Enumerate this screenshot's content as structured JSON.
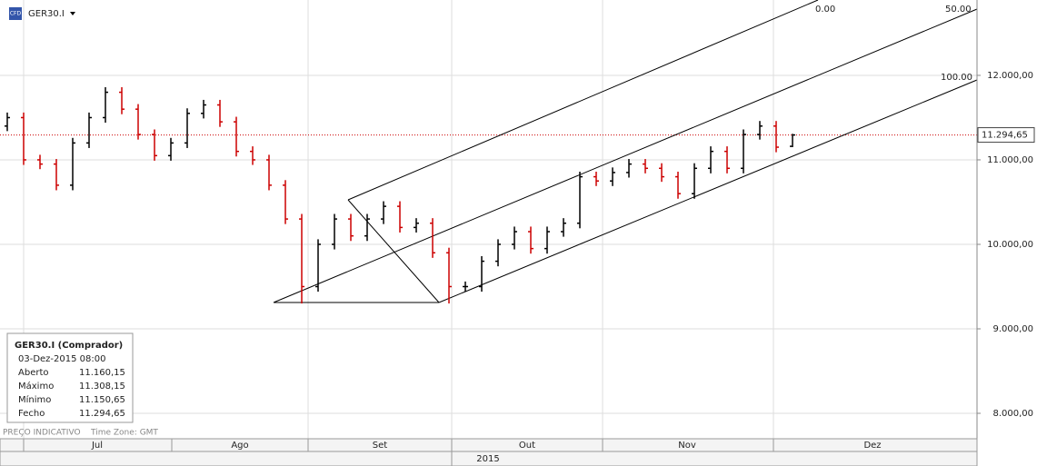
{
  "header": {
    "symbol": "GER30.I",
    "icon": "CFD"
  },
  "chart_data": {
    "type": "ohlc",
    "up_color": "#000000",
    "down_color": "#cc0000",
    "open": [
      11400,
      11500,
      11000,
      10950,
      10700,
      11200,
      11500,
      11800,
      11600,
      11300,
      11050,
      11200,
      11550,
      11650,
      11450,
      11100,
      11000,
      10700,
      10300,
      9500,
      10000,
      10300,
      10100,
      10300,
      10450,
      10200,
      10250,
      9900,
      9500,
      9500,
      9800,
      10000,
      10150,
      9950,
      10150,
      10250,
      10800,
      10750,
      10850,
      10950,
      10900,
      10800,
      10600,
      10900,
      11100,
      10900,
      11300,
      11400,
      11160.15
    ],
    "high": [
      11560,
      11560,
      11060,
      11010,
      11260,
      11560,
      11860,
      11860,
      11660,
      11360,
      11260,
      11610,
      11710,
      11710,
      11510,
      11160,
      11060,
      10760,
      10360,
      10060,
      10360,
      10360,
      10360,
      10510,
      10510,
      10310,
      10310,
      9960,
      9560,
      9860,
      10060,
      10210,
      10210,
      10210,
      10310,
      10860,
      10860,
      10910,
      11010,
      11010,
      10960,
      10860,
      10960,
      11160,
      11160,
      11360,
      11460,
      11460,
      11308.15
    ],
    "low": [
      11340,
      10940,
      10890,
      10640,
      10640,
      11140,
      11440,
      11540,
      11240,
      10990,
      10990,
      11140,
      11490,
      11390,
      11040,
      10940,
      10640,
      10240,
      9300,
      9440,
      9940,
      10040,
      10040,
      10240,
      10140,
      10140,
      9840,
      9300,
      9440,
      9440,
      9740,
      9940,
      9890,
      9890,
      10090,
      10190,
      10690,
      10690,
      10790,
      10840,
      10740,
      10540,
      10540,
      10840,
      10840,
      10840,
      11240,
      11090,
      11150.65
    ],
    "close": [
      11500,
      11000,
      10950,
      10700,
      11200,
      11500,
      11800,
      11600,
      11300,
      11050,
      11200,
      11550,
      11650,
      11450,
      11100,
      11000,
      10700,
      10300,
      9500,
      10000,
      10300,
      10100,
      10300,
      10450,
      10200,
      10250,
      9900,
      9500,
      9500,
      9800,
      10000,
      10150,
      9950,
      10150,
      10250,
      10800,
      10750,
      10850,
      10950,
      10900,
      10800,
      10600,
      10900,
      11100,
      10900,
      11300,
      11400,
      11150,
      11294.65
    ],
    "last_price": {
      "value": 11294.65,
      "label": "11.294,65"
    },
    "ylim": [
      7699,
      12892
    ],
    "yticks": [
      {
        "value": 12000,
        "label": "12.000,00"
      },
      {
        "value": 11000,
        "label": "11.000,00"
      },
      {
        "value": 10000,
        "label": "10.000,00"
      },
      {
        "value": 9000,
        "label": "9.000,00"
      },
      {
        "value": 8000,
        "label": "8.000,00"
      }
    ],
    "months": [
      "Jul",
      "Ago",
      "Set",
      "Out",
      "Nov",
      "Dez"
    ],
    "year": "2015",
    "fib_labels": [
      "0.00",
      "50.00",
      "100.00"
    ],
    "footer": "PREÇO INDICATIVO",
    "timezone": "Time Zone: GMT"
  },
  "info_box": {
    "title": "GER30.I (Comprador)",
    "date": "03-Dez-2015 08:00",
    "rows": [
      [
        "Aberto",
        "11.160,15"
      ],
      [
        "Máximo",
        "11.308,15"
      ],
      [
        "Mínimo",
        "11.150,65"
      ],
      [
        "Fecho",
        "11.294,65"
      ]
    ]
  }
}
